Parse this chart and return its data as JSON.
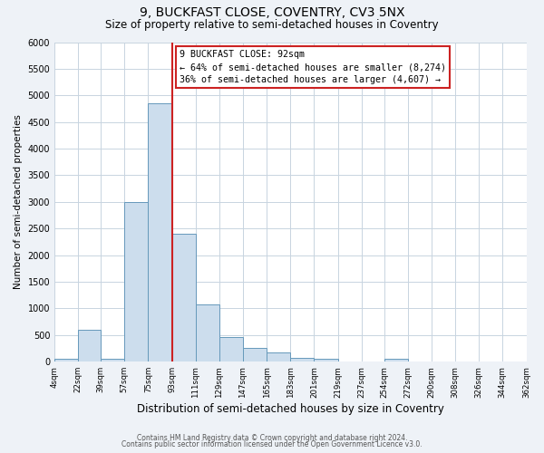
{
  "title": "9, BUCKFAST CLOSE, COVENTRY, CV3 5NX",
  "subtitle": "Size of property relative to semi-detached houses in Coventry",
  "xlabel": "Distribution of semi-detached houses by size in Coventry",
  "ylabel": "Number of semi-detached properties",
  "bar_edges": [
    4,
    22,
    39,
    57,
    75,
    93,
    111,
    129,
    147,
    165,
    183,
    201,
    219,
    237,
    254,
    272,
    290,
    308,
    326,
    344,
    362
  ],
  "bar_heights": [
    55,
    600,
    55,
    3000,
    4850,
    2400,
    1080,
    460,
    260,
    170,
    80,
    55,
    0,
    0,
    55,
    0,
    0,
    0,
    0,
    0
  ],
  "bar_color": "#ccdded",
  "bar_edge_color": "#6699bb",
  "property_line_x": 93,
  "annotation_title": "9 BUCKFAST CLOSE: 92sqm",
  "annotation_line1": "← 64% of semi-detached houses are smaller (8,274)",
  "annotation_line2": "36% of semi-detached houses are larger (4,607) →",
  "annotation_box_color": "#ffffff",
  "annotation_box_edge": "#cc2222",
  "ylim": [
    0,
    6000
  ],
  "yticks": [
    0,
    500,
    1000,
    1500,
    2000,
    2500,
    3000,
    3500,
    4000,
    4500,
    5000,
    5500,
    6000
  ],
  "tick_labels": [
    "4sqm",
    "22sqm",
    "39sqm",
    "57sqm",
    "75sqm",
    "93sqm",
    "111sqm",
    "129sqm",
    "147sqm",
    "165sqm",
    "183sqm",
    "201sqm",
    "219sqm",
    "237sqm",
    "254sqm",
    "272sqm",
    "290sqm",
    "308sqm",
    "326sqm",
    "344sqm",
    "362sqm"
  ],
  "footer_line1": "Contains HM Land Registry data © Crown copyright and database right 2024.",
  "footer_line2": "Contains public sector information licensed under the Open Government Licence v3.0.",
  "bg_color": "#eef2f7",
  "plot_bg_color": "#ffffff",
  "grid_color": "#c8d4e0",
  "title_fontsize": 10,
  "subtitle_fontsize": 8.5,
  "ylabel_fontsize": 7.5,
  "xlabel_fontsize": 8.5
}
